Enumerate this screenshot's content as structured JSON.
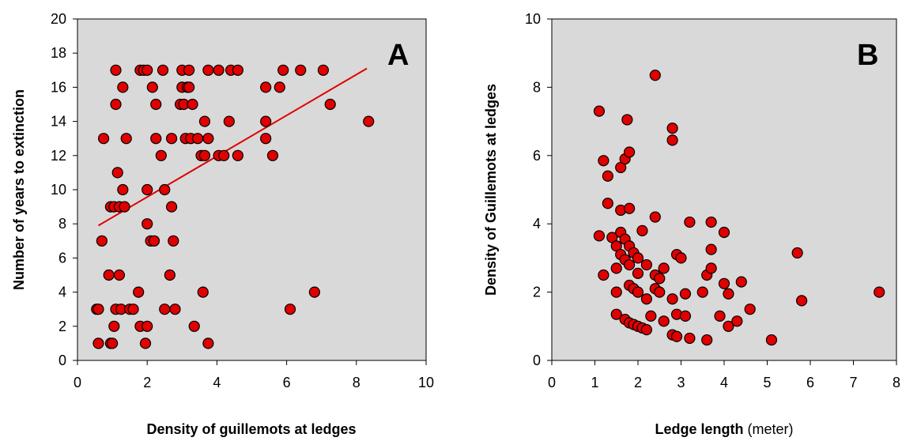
{
  "colors": {
    "plot_bg": "#d9d9d9",
    "point_fill": "#e00000",
    "point_stroke": "#000000",
    "line": "#e00000"
  },
  "chart_data": [
    {
      "type": "scatter",
      "panel_label": "A",
      "xlabel": "Density of guillemots at ledges",
      "ylabel": "Number of years to extinction",
      "xlim": [
        0,
        10
      ],
      "ylim": [
        0,
        20
      ],
      "x_ticks": [
        "0",
        "2",
        "4",
        "6",
        "8",
        "10"
      ],
      "y_ticks": [
        "0",
        "2",
        "4",
        "6",
        "8",
        "10",
        "12",
        "14",
        "16",
        "18",
        "20"
      ],
      "grid": false,
      "trendline": {
        "x": [
          0.6,
          8.3
        ],
        "y": [
          7.9,
          17.1
        ]
      },
      "points": [
        [
          0.55,
          3
        ],
        [
          0.6,
          3
        ],
        [
          0.6,
          1
        ],
        [
          0.7,
          7
        ],
        [
          0.75,
          13
        ],
        [
          0.9,
          5
        ],
        [
          0.95,
          9
        ],
        [
          0.95,
          1
        ],
        [
          1.0,
          1
        ],
        [
          1.05,
          2
        ],
        [
          1.05,
          9
        ],
        [
          1.1,
          3
        ],
        [
          1.1,
          17
        ],
        [
          1.1,
          15
        ],
        [
          1.15,
          11
        ],
        [
          1.2,
          9
        ],
        [
          1.2,
          5
        ],
        [
          1.25,
          3
        ],
        [
          1.3,
          10
        ],
        [
          1.3,
          16
        ],
        [
          1.35,
          9
        ],
        [
          1.4,
          13
        ],
        [
          1.5,
          3
        ],
        [
          1.6,
          3
        ],
        [
          1.75,
          4
        ],
        [
          1.8,
          17
        ],
        [
          1.8,
          2
        ],
        [
          1.9,
          17
        ],
        [
          1.95,
          1
        ],
        [
          2.0,
          17
        ],
        [
          2.0,
          10
        ],
        [
          2.0,
          8
        ],
        [
          2.0,
          2
        ],
        [
          2.1,
          7
        ],
        [
          2.15,
          16
        ],
        [
          2.2,
          7
        ],
        [
          2.25,
          15
        ],
        [
          2.25,
          13
        ],
        [
          2.4,
          12
        ],
        [
          2.45,
          17
        ],
        [
          2.5,
          10
        ],
        [
          2.5,
          3
        ],
        [
          2.65,
          5
        ],
        [
          2.7,
          13
        ],
        [
          2.7,
          9
        ],
        [
          2.75,
          7
        ],
        [
          2.8,
          3
        ],
        [
          2.95,
          15
        ],
        [
          3.0,
          16
        ],
        [
          3.0,
          17
        ],
        [
          3.05,
          15
        ],
        [
          3.1,
          13
        ],
        [
          3.15,
          16
        ],
        [
          3.2,
          17
        ],
        [
          3.2,
          16
        ],
        [
          3.25,
          13
        ],
        [
          3.3,
          15
        ],
        [
          3.35,
          2
        ],
        [
          3.45,
          13
        ],
        [
          3.55,
          12
        ],
        [
          3.6,
          4
        ],
        [
          3.65,
          14
        ],
        [
          3.65,
          12
        ],
        [
          3.75,
          1
        ],
        [
          3.75,
          13
        ],
        [
          3.75,
          17
        ],
        [
          4.05,
          12
        ],
        [
          4.05,
          17
        ],
        [
          4.2,
          12
        ],
        [
          4.35,
          14
        ],
        [
          4.4,
          17
        ],
        [
          4.6,
          17
        ],
        [
          4.6,
          12
        ],
        [
          5.4,
          16
        ],
        [
          5.4,
          14
        ],
        [
          5.4,
          13
        ],
        [
          5.6,
          12
        ],
        [
          5.8,
          16
        ],
        [
          5.9,
          17
        ],
        [
          6.1,
          3
        ],
        [
          6.4,
          17
        ],
        [
          6.8,
          4
        ],
        [
          7.05,
          17
        ],
        [
          7.25,
          15
        ],
        [
          8.35,
          14
        ]
      ]
    },
    {
      "type": "scatter",
      "panel_label": "B",
      "xlabel": "Ledge length",
      "xlabel_unit": " (meter)",
      "ylabel": "Density of Guillemots at ledges",
      "xlim": [
        0,
        8
      ],
      "ylim": [
        0,
        10
      ],
      "x_ticks": [
        "0",
        "1",
        "2",
        "3",
        "4",
        "5",
        "6",
        "7",
        "8"
      ],
      "y_ticks": [
        "0",
        "2",
        "4",
        "6",
        "8",
        "10"
      ],
      "grid": false,
      "points": [
        [
          1.1,
          7.3
        ],
        [
          1.1,
          3.65
        ],
        [
          1.2,
          5.85
        ],
        [
          1.2,
          2.5
        ],
        [
          1.3,
          5.4
        ],
        [
          1.3,
          4.6
        ],
        [
          1.4,
          3.6
        ],
        [
          1.5,
          3.35
        ],
        [
          1.5,
          2.7
        ],
        [
          1.5,
          2.0
        ],
        [
          1.5,
          1.35
        ],
        [
          1.6,
          5.65
        ],
        [
          1.6,
          4.4
        ],
        [
          1.6,
          3.75
        ],
        [
          1.6,
          3.1
        ],
        [
          1.7,
          5.9
        ],
        [
          1.7,
          3.55
        ],
        [
          1.7,
          2.95
        ],
        [
          1.7,
          1.2
        ],
        [
          1.75,
          7.05
        ],
        [
          1.8,
          6.1
        ],
        [
          1.8,
          4.45
        ],
        [
          1.8,
          3.35
        ],
        [
          1.8,
          2.8
        ],
        [
          1.8,
          2.2
        ],
        [
          1.8,
          1.1
        ],
        [
          1.9,
          3.15
        ],
        [
          1.9,
          2.1
        ],
        [
          1.9,
          1.05
        ],
        [
          2.0,
          3.0
        ],
        [
          2.0,
          2.55
        ],
        [
          2.0,
          2.0
        ],
        [
          2.0,
          1.0
        ],
        [
          2.1,
          3.8
        ],
        [
          2.1,
          0.95
        ],
        [
          2.2,
          2.8
        ],
        [
          2.2,
          1.8
        ],
        [
          2.2,
          0.9
        ],
        [
          2.3,
          1.3
        ],
        [
          2.4,
          8.35
        ],
        [
          2.4,
          4.2
        ],
        [
          2.4,
          2.5
        ],
        [
          2.4,
          2.1
        ],
        [
          2.5,
          2.4
        ],
        [
          2.5,
          2.0
        ],
        [
          2.6,
          2.7
        ],
        [
          2.6,
          1.15
        ],
        [
          2.8,
          6.8
        ],
        [
          2.8,
          6.45
        ],
        [
          2.8,
          1.8
        ],
        [
          2.8,
          0.75
        ],
        [
          2.9,
          3.1
        ],
        [
          2.9,
          1.35
        ],
        [
          2.9,
          0.7
        ],
        [
          3.0,
          3.0
        ],
        [
          3.1,
          1.95
        ],
        [
          3.1,
          1.3
        ],
        [
          3.2,
          4.05
        ],
        [
          3.2,
          0.65
        ],
        [
          3.5,
          2.0
        ],
        [
          3.6,
          2.5
        ],
        [
          3.6,
          0.6
        ],
        [
          3.7,
          4.05
        ],
        [
          3.7,
          3.25
        ],
        [
          3.7,
          2.7
        ],
        [
          3.9,
          1.3
        ],
        [
          4.0,
          3.75
        ],
        [
          4.0,
          2.25
        ],
        [
          4.1,
          1.95
        ],
        [
          4.1,
          1.0
        ],
        [
          4.3,
          1.15
        ],
        [
          4.4,
          2.3
        ],
        [
          4.6,
          1.5
        ],
        [
          5.1,
          0.6
        ],
        [
          5.7,
          3.15
        ],
        [
          5.8,
          1.75
        ],
        [
          7.6,
          2.0
        ]
      ]
    }
  ]
}
